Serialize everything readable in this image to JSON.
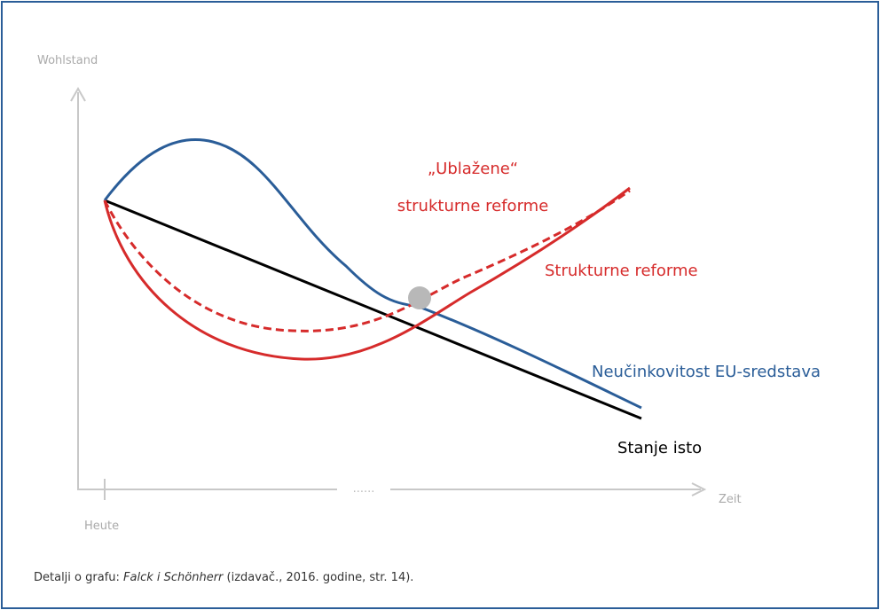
{
  "axes": {
    "y_label": "Wohlstand",
    "x_label": "Zeit",
    "origin_label": "Heute",
    "gap_label": "......"
  },
  "curves": {
    "mitigated_reform": [
      "„Ublažene“",
      "strukturne reforme"
    ],
    "reform": "Strukturne reforme",
    "inefficiency": "Neučinkovitost EU-sredstava",
    "status_quo": "Stanje isto"
  },
  "caption": {
    "lead": "Detalji o grafu: ",
    "authors": "Falck i Schönherr",
    "rest": " (izdavač., 2016. godine, str. 14)."
  }
}
